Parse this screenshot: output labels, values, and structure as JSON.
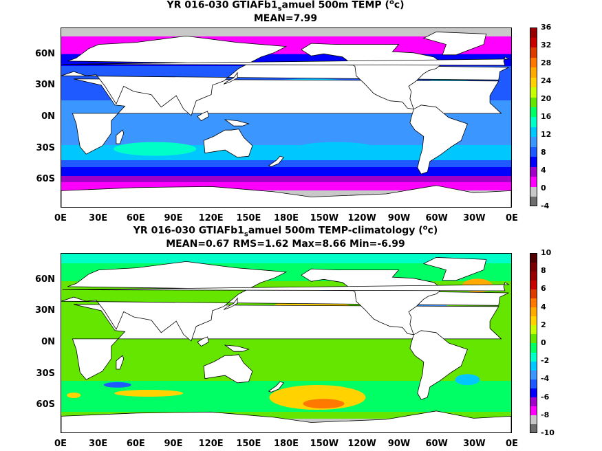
{
  "panels": [
    {
      "title_a": "YR 016-030 GTIAFb1",
      "title_sub": "s",
      "title_b": "amuel 500m TEMP (",
      "title_sup": "o",
      "title_c": "c)",
      "subtitle": "MEAN=7.99"
    },
    {
      "title_a": "YR 016-030 GTIAFb1",
      "title_sub": "s",
      "title_b": "amuel 500m TEMP-climatology (",
      "title_sup": "o",
      "title_c": "c)",
      "subtitle": "MEAN=0.67   RMS=1.62   Max=8.66   Min=-6.99"
    }
  ],
  "colors": {
    "temp_scale": [
      "#6e6e6e",
      "#c8c8c8",
      "#ff00ff",
      "#a000c8",
      "#0000ff",
      "#1e5aff",
      "#3c96ff",
      "#00c8ff",
      "#00ffc8",
      "#00ff64",
      "#64e600",
      "#c8ff00",
      "#ffd200",
      "#ffaa00",
      "#ff7800",
      "#dc3c00",
      "#c80000",
      "#960000"
    ],
    "anom_scale": [
      "#6e6e6e",
      "#c8c8c8",
      "#ff00ff",
      "#a000c8",
      "#0000ff",
      "#1e5aff",
      "#3c96ff",
      "#00c8ff",
      "#00ffc8",
      "#00ff64",
      "#64e600",
      "#c8ff00",
      "#ffd200",
      "#ffaa00",
      "#ff7800",
      "#dc3c00",
      "#c80000",
      "#960000",
      "#780000",
      "#500000"
    ]
  },
  "chart_data": [
    {
      "type": "heatmap",
      "title": "YR 016-030 GTIAFb1_samuel 500m TEMP (oc)",
      "subtitle": "MEAN=7.99",
      "x_ticks": [
        "0E",
        "30E",
        "60E",
        "90E",
        "120E",
        "150E",
        "180E",
        "150W",
        "120W",
        "90W",
        "60W",
        "30W",
        "0E"
      ],
      "y_ticks": [
        "60N",
        "30N",
        "0N",
        "30S",
        "60S"
      ],
      "colorbar_ticks": [
        "36",
        "32",
        "28",
        "24",
        "20",
        "16",
        "12",
        "8",
        "4",
        "0",
        "-4"
      ],
      "colorbar_range": [
        -4,
        36
      ],
      "stats": {
        "mean": 7.99
      }
    },
    {
      "type": "heatmap",
      "title": "YR 016-030 GTIAFb1_samuel 500m TEMP-climatology (oc)",
      "subtitle": "MEAN=0.67   RMS=1.62   Max=8.66   Min=-6.99",
      "x_ticks": [
        "0E",
        "30E",
        "60E",
        "90E",
        "120E",
        "150E",
        "180E",
        "150W",
        "120W",
        "90W",
        "60W",
        "30W",
        "0E"
      ],
      "y_ticks": [
        "60N",
        "30N",
        "0N",
        "30S",
        "60S"
      ],
      "colorbar_ticks": [
        "10",
        "8",
        "6",
        "4",
        "2",
        "0",
        "-2",
        "-4",
        "-6",
        "-8",
        "-10"
      ],
      "colorbar_range": [
        -10,
        10
      ],
      "stats": {
        "mean": 0.67,
        "rms": 1.62,
        "max": 8.66,
        "min": -6.99
      }
    }
  ]
}
